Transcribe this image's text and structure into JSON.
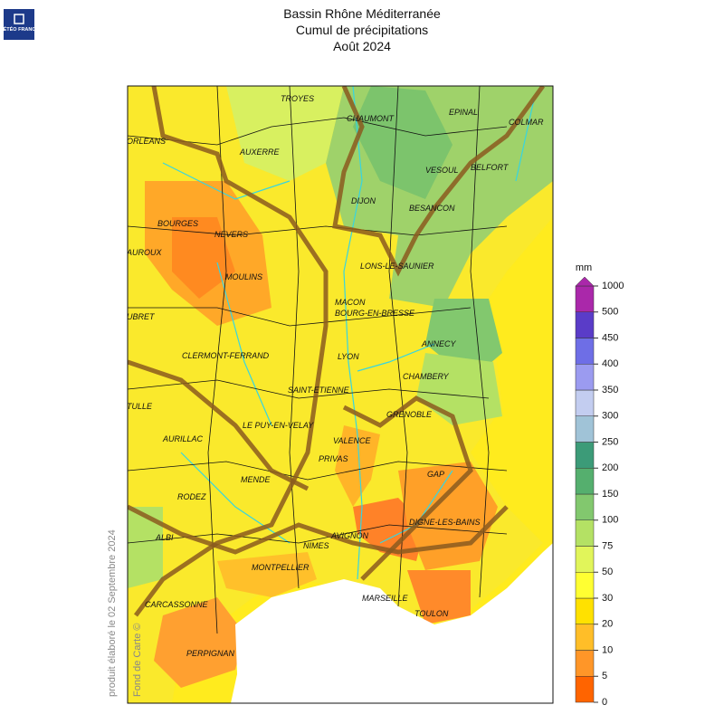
{
  "header": {
    "logo": "MÉTÉO FRANCE",
    "title": [
      "Bassin Rhône Méditerranée",
      "Cumul de précipitations",
      "Août 2024"
    ]
  },
  "map": {
    "cities": [
      "TROYES",
      "CHAUMONT",
      "EPINAL",
      "COLMAR",
      "ORLEANS",
      "AUXERRE",
      "VESOUL",
      "BELFORT",
      "DIJON",
      "BESANCON",
      "BOURGES",
      "NEVERS",
      "AUROUX",
      "LONS-LE-SAUNIER",
      "MOULINS",
      "MACON",
      "UBRET",
      "BOURG-EN-BRESSE",
      "ANNECY",
      "CLERMONT-FERRAND",
      "LYON",
      "CHAMBERY",
      "SAINT-ETIENNE",
      "TULLE",
      "GRENOBLE",
      "LE PUY-EN-VELAY",
      "AURILLAC",
      "VALENCE",
      "PRIVAS",
      "GAP",
      "MENDE",
      "RODEZ",
      "DIGNE-LES-BAINS",
      "AVIGNON",
      "ALBI",
      "NIMES",
      "MONTPELLIER",
      "CARCASSONNE",
      "MARSEILLE",
      "TOULON",
      "PERPIGNAN"
    ]
  },
  "legend": {
    "unit": "mm",
    "ticks": [
      0,
      5,
      10,
      20,
      30,
      50,
      75,
      100,
      150,
      200,
      250,
      300,
      350,
      400,
      450,
      500,
      1000
    ],
    "colors": [
      "#ff6400",
      "#ff9628",
      "#ffbe28",
      "#ffe100",
      "#ffff32",
      "#e1f55a",
      "#b4e164",
      "#82c86e",
      "#55af6e",
      "#3c9b78",
      "#a0c3d7",
      "#c3cdf0",
      "#9b9bf0",
      "#6e6ee6",
      "#5a3cc8",
      "#aa28aa"
    ]
  },
  "footer": {
    "produced": "produit élaboré le 02 Septembre 2024",
    "credit": "Fond de Carte ©"
  }
}
